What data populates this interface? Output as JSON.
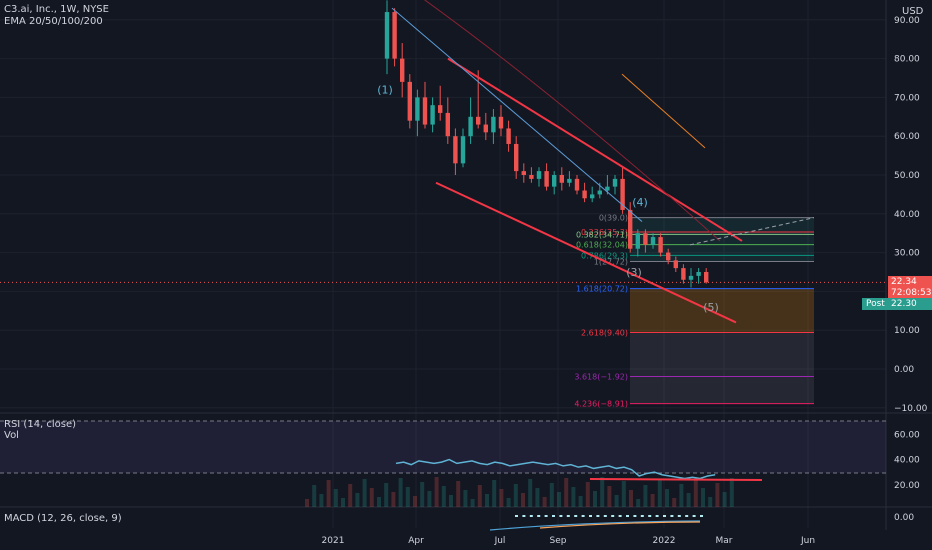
{
  "header": {
    "title": "C3.ai, Inc., 1W, NYSE",
    "indicator": "EMA 20/50/100/200",
    "currency": "USD"
  },
  "colors": {
    "background": "#131722",
    "up": "#26a69a",
    "down": "#ef5350",
    "grid": "#1e222d",
    "channel": "#f23645",
    "rsi": "#5fb3d4",
    "macd": "#4fa3d8",
    "signal": "#f7a35c"
  },
  "price_axis": {
    "ticks": [
      "90.00",
      "80.00",
      "70.00",
      "60.00",
      "50.00",
      "40.00",
      "30.00",
      "20.00",
      "10.00",
      "0.00",
      "−10.00"
    ],
    "last_price": "22.34",
    "countdown": "72:08:53",
    "post_label": "Post",
    "post_price": "22.30"
  },
  "time_axis": {
    "ticks": [
      "2021",
      "Apr",
      "Jul",
      "Sep",
      "2022",
      "Mar",
      "Jun"
    ]
  },
  "fib": {
    "levels": [
      {
        "ratio": 0,
        "value": 39.0,
        "label": "0(39.0)"
      },
      {
        "ratio": 0.236,
        "value": 35.3,
        "label": "0.236(35.3)"
      },
      {
        "ratio": 0.382,
        "value": 34.71,
        "label": "0.382(34.71)"
      },
      {
        "ratio": 0.618,
        "value": 32.04,
        "label": "0.618(32.04)"
      },
      {
        "ratio": 0.786,
        "value": 29.3,
        "label": "0.786(29.3)"
      },
      {
        "ratio": 1,
        "value": 27.72,
        "label": "1(27.72)"
      },
      {
        "ratio": 1.618,
        "value": 20.72,
        "label": "1.618(20.72)"
      },
      {
        "ratio": 2.618,
        "value": 9.4,
        "label": "2.618(9.40)"
      },
      {
        "ratio": 3.618,
        "value": -1.92,
        "label": "3.618(−1.92)"
      },
      {
        "ratio": 4.236,
        "value": -8.91,
        "label": "4.236(−8.91)"
      }
    ]
  },
  "wave_labels": [
    "(1)",
    "(4)",
    "(3)",
    "(5)"
  ],
  "rsi": {
    "title": "RSI (14, close)",
    "sub": "Vol",
    "ticks": [
      "60.00",
      "40.00",
      "20.00"
    ]
  },
  "macd": {
    "title": "MACD (12, 26, close, 9)",
    "tick": "0.00"
  },
  "chart_data": {
    "type": "candlestick",
    "title": "C3.ai, Inc., 1W, NYSE",
    "ylim": [
      -10,
      95
    ],
    "candles": [
      {
        "o": 80,
        "h": 95,
        "l": 76,
        "c": 92
      },
      {
        "o": 92,
        "h": 93,
        "l": 78,
        "c": 80
      },
      {
        "o": 80,
        "h": 84,
        "l": 70,
        "c": 74
      },
      {
        "o": 74,
        "h": 76,
        "l": 62,
        "c": 64
      },
      {
        "o": 64,
        "h": 72,
        "l": 60,
        "c": 70
      },
      {
        "o": 70,
        "h": 74,
        "l": 62,
        "c": 63
      },
      {
        "o": 63,
        "h": 70,
        "l": 61,
        "c": 68
      },
      {
        "o": 68,
        "h": 73,
        "l": 64,
        "c": 66
      },
      {
        "o": 66,
        "h": 70,
        "l": 58,
        "c": 60
      },
      {
        "o": 60,
        "h": 62,
        "l": 50,
        "c": 53
      },
      {
        "o": 53,
        "h": 62,
        "l": 52,
        "c": 60
      },
      {
        "o": 60,
        "h": 70,
        "l": 58,
        "c": 65
      },
      {
        "o": 65,
        "h": 77,
        "l": 62,
        "c": 63
      },
      {
        "o": 63,
        "h": 66,
        "l": 59,
        "c": 61
      },
      {
        "o": 61,
        "h": 67,
        "l": 58,
        "c": 65
      },
      {
        "o": 65,
        "h": 68,
        "l": 60,
        "c": 62
      },
      {
        "o": 62,
        "h": 64,
        "l": 56,
        "c": 58
      },
      {
        "o": 58,
        "h": 60,
        "l": 49,
        "c": 51
      },
      {
        "o": 51,
        "h": 53,
        "l": 48,
        "c": 50
      },
      {
        "o": 50,
        "h": 52,
        "l": 48,
        "c": 49
      },
      {
        "o": 49,
        "h": 52,
        "l": 47,
        "c": 51
      },
      {
        "o": 51,
        "h": 53,
        "l": 46,
        "c": 47
      },
      {
        "o": 47,
        "h": 51,
        "l": 45,
        "c": 50
      },
      {
        "o": 50,
        "h": 52,
        "l": 46,
        "c": 48
      },
      {
        "o": 48,
        "h": 51,
        "l": 47,
        "c": 49
      },
      {
        "o": 49,
        "h": 50,
        "l": 45,
        "c": 46
      },
      {
        "o": 46,
        "h": 48,
        "l": 43,
        "c": 44
      },
      {
        "o": 44,
        "h": 47,
        "l": 43,
        "c": 45
      },
      {
        "o": 45,
        "h": 48,
        "l": 44,
        "c": 46
      },
      {
        "o": 46,
        "h": 50,
        "l": 45,
        "c": 47
      },
      {
        "o": 47,
        "h": 50,
        "l": 45,
        "c": 49
      },
      {
        "o": 49,
        "h": 52,
        "l": 40,
        "c": 41
      },
      {
        "o": 41,
        "h": 43,
        "l": 30,
        "c": 31
      },
      {
        "o": 31,
        "h": 36,
        "l": 29,
        "c": 35
      },
      {
        "o": 35,
        "h": 36,
        "l": 30,
        "c": 32
      },
      {
        "o": 32,
        "h": 35,
        "l": 31,
        "c": 34
      },
      {
        "o": 34,
        "h": 35,
        "l": 29,
        "c": 30
      },
      {
        "o": 30,
        "h": 31,
        "l": 27,
        "c": 28
      },
      {
        "o": 28,
        "h": 29,
        "l": 25,
        "c": 26
      },
      {
        "o": 26,
        "h": 27,
        "l": 22,
        "c": 23
      },
      {
        "o": 23,
        "h": 26,
        "l": 21,
        "c": 24
      },
      {
        "o": 24,
        "h": 26,
        "l": 22,
        "c": 25
      },
      {
        "o": 25,
        "h": 26,
        "l": 22,
        "c": 22.34
      }
    ],
    "rsi": [
      37,
      38,
      36,
      39,
      38,
      37,
      38,
      40,
      37,
      38,
      39,
      37,
      36,
      38,
      37,
      35,
      36,
      37,
      38,
      37,
      36,
      37,
      35,
      36,
      34,
      35,
      33,
      34,
      35,
      33,
      34,
      32,
      27,
      29,
      30,
      28,
      27,
      26,
      25,
      26,
      25,
      27,
      28
    ]
  }
}
